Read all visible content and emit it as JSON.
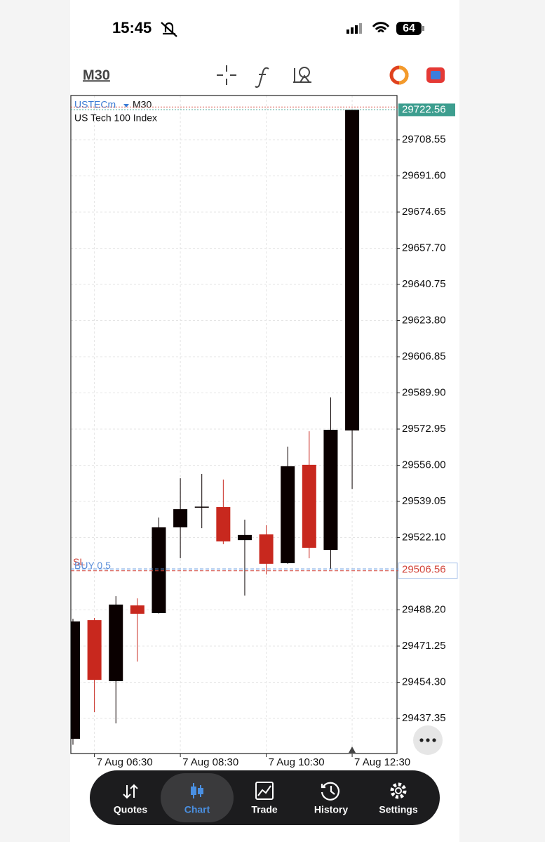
{
  "status_bar": {
    "time": "15:45",
    "battery": "64"
  },
  "toolbar": {
    "timeframe": "M30"
  },
  "chart_data": {
    "type": "candlestick",
    "symbol": "USTECm",
    "timeframe": "M30",
    "description": "US Tech 100 Index",
    "categories": [
      null,
      "7 Aug 06:30",
      null,
      null,
      null,
      "7 Aug 08:30",
      null,
      null,
      null,
      "7 Aug 10:30",
      null,
      null,
      null,
      "7 Aug 12:30"
    ],
    "open": [
      29427.8,
      29483.4,
      29454.8,
      29490.3,
      29486.7,
      29526.9,
      29536.4,
      29536.4,
      29520.9,
      29523.6,
      29510.1,
      29556.2,
      29516.3,
      29572.3
    ],
    "high": [
      29484.0,
      29484.4,
      29494.6,
      29493.6,
      29531.5,
      29549.9,
      29551.9,
      29549.3,
      29530.5,
      29527.9,
      29564.7,
      29571.9,
      29587.8,
      29722.56
    ],
    "low": [
      29425.0,
      29440.3,
      29435.0,
      29464.0,
      29486.5,
      29512.4,
      29526.5,
      29519.0,
      29494.9,
      29504.8,
      29509.8,
      29512.4,
      29507.4,
      29544.9
    ],
    "close": [
      29482.8,
      29455.4,
      29490.7,
      29486.4,
      29526.9,
      29535.4,
      29536.6,
      29520.3,
      29523.3,
      29509.8,
      29555.5,
      29517.3,
      29572.6,
      29722.56
    ],
    "up_color": "#0a0000",
    "down_color": "#c8281e",
    "ylim": [
      29420.89,
      29729.28
    ],
    "yticks": [
      29708.55,
      {
        "value": 29691.6,
        "label": "29691.60"
      },
      29674.65,
      {
        "value": 29657.7,
        "label": "29657.70"
      },
      29640.75,
      {
        "value": 29623.8,
        "label": "29623.80"
      },
      29606.85,
      {
        "value": 29589.9,
        "label": "29589.90"
      },
      29572.95,
      {
        "value": 29556,
        "label": "29556.00"
      },
      29539.05,
      {
        "value": 29522.1,
        "label": "29522.10"
      },
      {
        "value": 29488.2,
        "label": "29488.20"
      },
      29471.25,
      {
        "value": 29454.3,
        "label": "29454.30"
      },
      29437.35
    ],
    "grid": true,
    "current_price": 29722.56,
    "order_line": {
      "label": "BUY 0.5",
      "price": 29507.4
    },
    "stop_loss": {
      "label": "SL",
      "price": 29506.56
    }
  },
  "navigation": {
    "items": [
      "Quotes",
      "Chart",
      "Trade",
      "History",
      "Settings"
    ],
    "active_index": 1
  }
}
